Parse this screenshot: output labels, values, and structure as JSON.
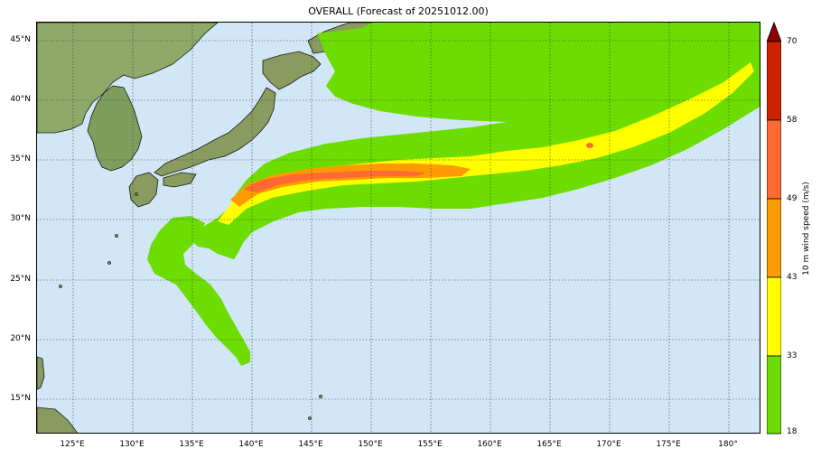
{
  "title": "OVERALL (Forecast of 20251012.00)",
  "lat_labels": [
    "45°N",
    "40°N",
    "35°N",
    "30°N",
    "25°N",
    "20°N",
    "15°N"
  ],
  "lon_labels": [
    "125°E",
    "130°E",
    "135°E",
    "140°E",
    "145°E",
    "150°E",
    "155°E",
    "160°E",
    "165°E",
    "170°E",
    "175°E",
    "180°"
  ],
  "colorbar": {
    "label": "10 m wind speed (m/s)",
    "ticks": [
      "18",
      "33",
      "43",
      "49",
      "58",
      "70"
    ],
    "colors": [
      "#6ddc00",
      "#ffff00",
      "#ff9a00",
      "#ff6a33",
      "#cc2200",
      "#8b0000"
    ]
  },
  "colors": {
    "ocean": "#d1e7f6",
    "land": "#7aa35a",
    "band_18_33": "#6ddc00",
    "band_33_43": "#ffff00",
    "band_43_49": "#ff9a00",
    "band_49_58": "#ff6a33"
  }
}
